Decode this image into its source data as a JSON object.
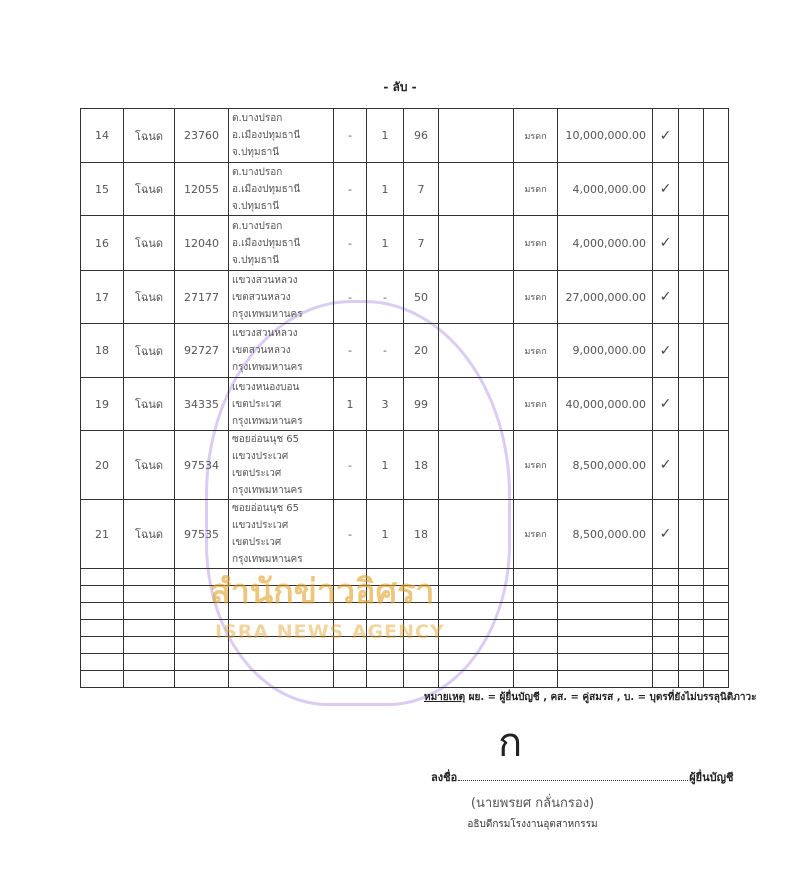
{
  "page_number": "- ลับ -",
  "rows": [
    {
      "no": "14",
      "doc_type": "โฉนด",
      "doc_no": "23760",
      "loc": [
        "ต.บางปรอก",
        "อ.เมืองปทุมธานี",
        "จ.ปทุมธานี"
      ],
      "rai": "-",
      "ngan": "1",
      "wa": "96",
      "source": "มรดก",
      "value": "10,000,000.00",
      "check": "✓"
    },
    {
      "no": "15",
      "doc_type": "โฉนด",
      "doc_no": "12055",
      "loc": [
        "ต.บางปรอก",
        "อ.เมืองปทุมธานี",
        "จ.ปทุมธานี"
      ],
      "rai": "-",
      "ngan": "1",
      "wa": "7",
      "source": "มรดก",
      "value": "4,000,000.00",
      "check": "✓"
    },
    {
      "no": "16",
      "doc_type": "โฉนด",
      "doc_no": "12040",
      "loc": [
        "ต.บางปรอก",
        "อ.เมืองปทุมธานี",
        "จ.ปทุมธานี"
      ],
      "rai": "-",
      "ngan": "1",
      "wa": "7",
      "source": "มรดก",
      "value": "4,000,000.00",
      "check": "✓"
    },
    {
      "no": "17",
      "doc_type": "โฉนด",
      "doc_no": "27177",
      "loc": [
        "แขวงสวนหลวง",
        "เขตสวนหลวง",
        "กรุงเทพมหานคร"
      ],
      "rai": "-",
      "ngan": "-",
      "wa": "50",
      "source": "มรดก",
      "value": "27,000,000.00",
      "check": "✓"
    },
    {
      "no": "18",
      "doc_type": "โฉนด",
      "doc_no": "92727",
      "loc": [
        "แขวงสวนหลวง",
        "เขตสวนหลวง",
        "กรุงเทพมหานคร"
      ],
      "rai": "-",
      "ngan": "-",
      "wa": "20",
      "source": "มรดก",
      "value": "9,000,000.00",
      "check": "✓"
    },
    {
      "no": "19",
      "doc_type": "โฉนด",
      "doc_no": "34335",
      "loc": [
        "แขวงหนองบอน",
        "เขตประเวศ",
        "กรุงเทพมหานคร"
      ],
      "rai": "1",
      "ngan": "3",
      "wa": "99",
      "source": "มรดก",
      "value": "40,000,000.00",
      "check": "✓"
    },
    {
      "no": "20",
      "doc_type": "โฉนด",
      "doc_no": "97534",
      "loc": [
        "ซอยอ่อนนุช 65",
        "แขวงประเวศ",
        "เขตประเวศ",
        "กรุงเทพมหานคร"
      ],
      "rai": "-",
      "ngan": "1",
      "wa": "18",
      "source": "มรดก",
      "value": "8,500,000.00",
      "check": "✓"
    },
    {
      "no": "21",
      "doc_type": "โฉนด",
      "doc_no": "97535",
      "loc": [
        "ซอยอ่อนนุช 65",
        "แขวงประเวศ",
        "เขตประเวศ",
        "กรุงเทพมหานคร"
      ],
      "rai": "-",
      "ngan": "1",
      "wa": "18",
      "source": "มรดก",
      "value": "8,500,000.00",
      "check": "✓"
    }
  ],
  "empty_rows": 7,
  "note": {
    "label": "หมายเหตุ",
    "text": " ผย. = ผู้ยื่นบัญชี , คส. = คู่สมรส , บ. = บุตรที่ยังไม่บรรลุนิติภาวะ"
  },
  "signature": {
    "mark": "ก",
    "sign_label": "ลงชื่อ",
    "role": "ผู้ยื่นบัญชี",
    "name": "(นายพรยศ  กลั่นกรอง)",
    "position": "อธิบดีกรมโรงงานอุตสาหกรรม"
  },
  "watermark": {
    "thai": "สำนักข่าวอิศรา",
    "english": "ISRA NEWS AGENCY",
    "color": "#e1a028",
    "seal_color": "#966edc"
  }
}
